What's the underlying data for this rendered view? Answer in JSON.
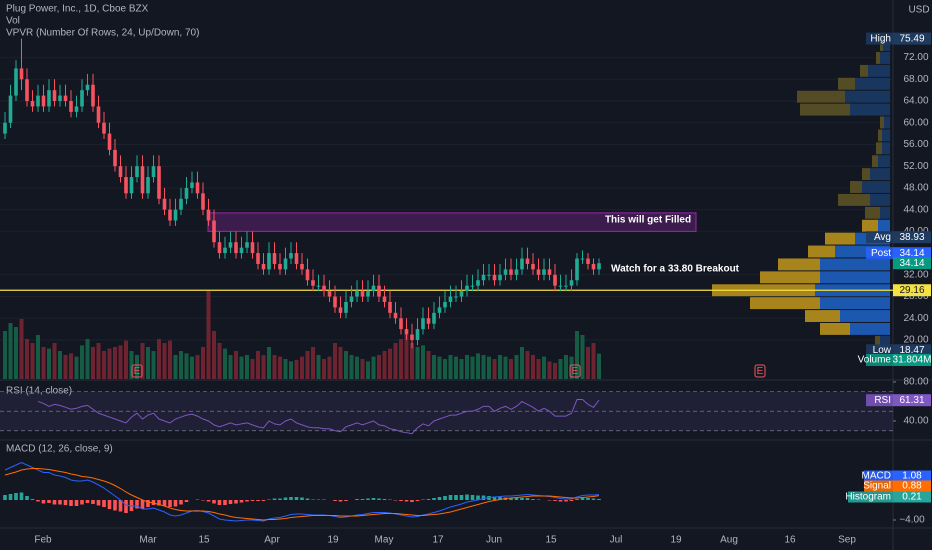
{
  "chart_data": {
    "type": "candlestick",
    "title": "Plug Power, Inc., 1D, Cboe BZX",
    "currency": "USD",
    "x_labels": [
      "Feb",
      "Mar",
      "15",
      "Apr",
      "19",
      "May",
      "17",
      "Jun",
      "15",
      "Jul",
      "19",
      "Aug",
      "16",
      "Sep"
    ],
    "open": [
      58,
      60,
      65,
      70,
      68,
      64,
      63,
      65,
      63,
      66,
      64,
      65,
      64,
      62,
      63,
      66,
      67,
      63,
      60,
      58,
      55,
      52,
      50,
      47,
      50,
      52,
      47,
      50,
      52,
      46,
      44,
      42,
      44,
      46,
      48,
      49,
      47,
      44,
      42,
      38,
      36,
      37,
      38,
      36,
      37,
      38,
      36,
      34,
      33,
      36,
      34,
      33,
      35,
      36,
      34,
      33,
      31,
      30,
      30,
      29,
      28,
      26,
      25,
      27,
      28,
      29,
      28,
      29,
      30,
      28,
      27,
      25,
      24,
      22,
      21,
      20,
      22,
      24,
      23,
      25,
      26,
      27,
      28,
      28,
      29,
      30,
      30,
      31,
      32,
      32,
      31,
      32,
      33,
      32,
      33,
      35,
      34,
      33,
      32,
      33,
      32,
      30,
      30,
      30,
      31,
      35,
      35,
      34,
      33
    ],
    "high": [
      62,
      67,
      71.5,
      75.49,
      70,
      66,
      67,
      67,
      68,
      68,
      67,
      67,
      66,
      65,
      68,
      69,
      69,
      65,
      62,
      60,
      57,
      54,
      52,
      52,
      54,
      54,
      52,
      54,
      54,
      48,
      46,
      46,
      48,
      50,
      51,
      51,
      49,
      46,
      44,
      40,
      39,
      40,
      40,
      39,
      40,
      40,
      38,
      36,
      38,
      38,
      36,
      37,
      38,
      38,
      36,
      35,
      33,
      32,
      32,
      31,
      30,
      28,
      29,
      30,
      31,
      31,
      31,
      32,
      32,
      30,
      29,
      27,
      26,
      24,
      23,
      24,
      26,
      26,
      27,
      28,
      29,
      30,
      30,
      31,
      32,
      32,
      33,
      34,
      34,
      34,
      34,
      35,
      35,
      35,
      37,
      37,
      36,
      35,
      35,
      35,
      34,
      32,
      32,
      33,
      36,
      36.5,
      36,
      35,
      35
    ],
    "low": [
      57,
      59,
      64,
      66,
      63,
      62,
      62,
      62,
      62,
      63,
      63,
      63,
      61,
      61,
      62,
      65,
      62,
      59,
      57,
      54,
      51,
      49,
      46,
      46,
      49,
      46,
      46,
      49,
      45,
      43,
      41,
      41,
      43,
      45,
      47,
      46,
      43,
      41,
      37,
      35,
      35,
      36,
      35,
      35,
      36,
      35,
      33,
      32,
      32,
      33,
      32,
      32,
      34,
      33,
      32,
      30,
      29,
      29,
      28,
      27,
      25,
      24,
      24,
      26,
      27,
      27,
      27,
      28,
      27,
      26,
      24,
      23,
      21,
      20,
      18.47,
      19,
      21,
      22,
      22,
      24,
      25,
      26,
      27,
      27,
      28,
      29,
      29,
      30,
      31,
      30,
      30,
      31,
      31,
      31,
      32,
      33,
      32,
      31,
      31,
      31,
      29,
      29,
      29,
      29,
      30,
      34,
      33,
      32,
      32
    ],
    "close": [
      60,
      65,
      70,
      68,
      64,
      63,
      65,
      63,
      66,
      64,
      65,
      64,
      62,
      63,
      66,
      67,
      63,
      60,
      58,
      55,
      52,
      50,
      47,
      50,
      52,
      47,
      50,
      52,
      46,
      44,
      42,
      44,
      46,
      48,
      49,
      47,
      44,
      42,
      38,
      36,
      37,
      38,
      36,
      37,
      38,
      36,
      34,
      33,
      36,
      34,
      33,
      35,
      36,
      34,
      33,
      31,
      30,
      30,
      29,
      28,
      26,
      25,
      27,
      28,
      29,
      28,
      29,
      30,
      28,
      27,
      25,
      24,
      22,
      21,
      20,
      22,
      24,
      23,
      25,
      26,
      27,
      28,
      28,
      29,
      30,
      30,
      31,
      32,
      32,
      31,
      32,
      33,
      32,
      33,
      35,
      34,
      33,
      32,
      33,
      32,
      30,
      30,
      30,
      31,
      35,
      35,
      34,
      33,
      34.14
    ],
    "colors": {
      "up": "#22ab94",
      "down": "#f7525f"
    },
    "ylim": [
      13,
      82.6
    ],
    "yticks": [
      {
        "value": 72,
        "label": "72.00"
      },
      {
        "value": 68,
        "label": "68.00"
      },
      {
        "value": 64,
        "label": "64.00"
      },
      {
        "value": 60,
        "label": "60.00"
      },
      {
        "value": 56,
        "label": "56.00"
      },
      {
        "value": 52,
        "label": "52.00"
      },
      {
        "value": 48,
        "label": "48.00"
      },
      {
        "value": 44,
        "label": "44.00"
      },
      {
        "value": 40,
        "label": "40.00"
      },
      {
        "value": 32,
        "label": "32.00"
      },
      {
        "value": 28,
        "label": "28.00"
      },
      {
        "value": 24,
        "label": "24.00"
      },
      {
        "value": 20,
        "label": "20.00"
      }
    ],
    "high_tag": "High",
    "low_tag": "Low",
    "post": {
      "name": "Post",
      "value": 34.14
    },
    "level": {
      "value": 29.16,
      "color": "#f5e142"
    },
    "volume": {
      "title": "Vol",
      "name": "Volume",
      "values": [
        60,
        70,
        65,
        75,
        50,
        45,
        55,
        40,
        38,
        45,
        35,
        30,
        32,
        28,
        42,
        50,
        40,
        45,
        35,
        38,
        40,
        42,
        48,
        35,
        30,
        45,
        40,
        35,
        50,
        45,
        48,
        30,
        35,
        32,
        28,
        30,
        40,
        110,
        60,
        45,
        38,
        30,
        35,
        28,
        30,
        25,
        35,
        30,
        40,
        30,
        28,
        25,
        22,
        24,
        28,
        35,
        40,
        30,
        25,
        28,
        45,
        40,
        35,
        30,
        28,
        25,
        22,
        28,
        30,
        35,
        38,
        45,
        50,
        55,
        45,
        40,
        42,
        35,
        30,
        28,
        25,
        30,
        28,
        25,
        30,
        28,
        32,
        30,
        28,
        25,
        30,
        28,
        25,
        30,
        40,
        35,
        30,
        25,
        28,
        22,
        20,
        25,
        30,
        28,
        60,
        55,
        40,
        45,
        31.804
      ],
      "value_labels": {
        "108": "31.804M"
      }
    },
    "profile": {
      "title": "VPVR (Number Of Rows, 24, Up/Down, 70)",
      "range": [
        18.47,
        75.49
      ],
      "up": [
        10,
        40,
        50,
        70,
        75,
        70,
        70,
        55,
        35,
        12,
        10,
        20,
        28,
        20,
        12,
        8,
        8,
        6,
        40,
        45,
        35,
        22,
        10,
        7
      ],
      "down": [
        5,
        30,
        35,
        70,
        103,
        60,
        42,
        27,
        30,
        16,
        15,
        32,
        12,
        8,
        6,
        6,
        4,
        4,
        50,
        48,
        17,
        8,
        4,
        3
      ],
      "value_area": [
        1,
        9
      ],
      "avg": {
        "name": "Avg",
        "value": 38.93
      }
    },
    "annotations": [
      {
        "text": "This will get Filled",
        "zone": [
          40,
          43.4
        ]
      },
      {
        "text": "Watch for a 33.80 Breakout"
      }
    ],
    "events": [
      "E",
      "E",
      "E"
    ],
    "rsi": {
      "title": "RSI (14, close)",
      "name": "RSI",
      "color": "#7e57c2",
      "ylim": [
        20.5,
        82
      ],
      "yticks": [
        {
          "value": 80,
          "label": "80.00"
        },
        {
          "value": 40,
          "label": "40.00"
        }
      ],
      "bands": [
        30,
        50,
        70
      ],
      "values": [
        null,
        null,
        null,
        null,
        null,
        null,
        60,
        58,
        55,
        57,
        56,
        54,
        52,
        53,
        55,
        56,
        52,
        48,
        46,
        44,
        42,
        40,
        38,
        44,
        48,
        42,
        46,
        48,
        42,
        40,
        38,
        42,
        44,
        46,
        47,
        45,
        42,
        40,
        36,
        34,
        36,
        38,
        36,
        37,
        38,
        36,
        34,
        33,
        40,
        37,
        36,
        40,
        42,
        38,
        36,
        34,
        33,
        33,
        32,
        32,
        30,
        29,
        34,
        36,
        38,
        36,
        38,
        40,
        36,
        35,
        32,
        31,
        29,
        28,
        27,
        33,
        37,
        35,
        40,
        42,
        44,
        46,
        46,
        48,
        50,
        50,
        52,
        55,
        55,
        50,
        53,
        55,
        52,
        55,
        60,
        57,
        54,
        50,
        53,
        50,
        45,
        45,
        45,
        48,
        62,
        62,
        57,
        54,
        61.31
      ]
    },
    "macd": {
      "title": "MACD (12, 26, close, 9)",
      "ylim": [
        -5.6,
        12
      ],
      "yticks": [
        {
          "value": -4,
          "label": "−4.00"
        }
      ],
      "series": [
        {
          "name": "MACD",
          "color": "#2962ff",
          "values": [
            6,
            6.5,
            7,
            7.5,
            7,
            6.5,
            6,
            5.5,
            5.5,
            5,
            4.8,
            4.5,
            4,
            3.8,
            3.8,
            4,
            3.6,
            3,
            2.4,
            1.6,
            0.8,
            0,
            -1,
            -1.2,
            -1.2,
            -1.8,
            -1.8,
            -1.6,
            -2,
            -2.4,
            -3,
            -3.2,
            -3,
            -2.6,
            -2.2,
            -2.1,
            -2.3,
            -2.6,
            -3.2,
            -3.8,
            -4,
            -4.1,
            -4.2,
            -4.1,
            -4,
            -4,
            -4.1,
            -4.2,
            -3.8,
            -3.6,
            -3.5,
            -3.2,
            -2.9,
            -2.8,
            -2.8,
            -2.9,
            -3,
            -3,
            -3,
            -3.1,
            -3.3,
            -3.5,
            -3.4,
            -3.2,
            -3,
            -2.9,
            -2.7,
            -2.5,
            -2.5,
            -2.5,
            -2.6,
            -2.8,
            -3,
            -3.2,
            -3.4,
            -3.3,
            -3,
            -2.8,
            -2.5,
            -2.2,
            -1.8,
            -1.4,
            -1.1,
            -0.8,
            -0.4,
            -0.2,
            0,
            0.3,
            0.5,
            0.6,
            0.7,
            0.8,
            0.8,
            0.9,
            1,
            1.1,
            1,
            0.9,
            0.8,
            0.7,
            0.5,
            0.3,
            0.2,
            0.2,
            0.6,
            0.9,
            1,
            1,
            1.08
          ]
        },
        {
          "name": "Signal",
          "color": "#ff6d00",
          "values": [
            5,
            5.3,
            5.6,
            6,
            6.2,
            6.3,
            6.3,
            6.2,
            6.1,
            5.9,
            5.7,
            5.5,
            5.2,
            5,
            4.7,
            4.6,
            4.4,
            4.1,
            3.8,
            3.4,
            2.9,
            2.3,
            1.6,
            1,
            0.5,
            0,
            -0.4,
            -0.6,
            -0.9,
            -1.2,
            -1.6,
            -1.9,
            -2.1,
            -2.2,
            -2.2,
            -2.2,
            -2.2,
            -2.3,
            -2.5,
            -2.8,
            -3,
            -3.3,
            -3.5,
            -3.6,
            -3.7,
            -3.8,
            -3.9,
            -4,
            -3.9,
            -3.9,
            -3.8,
            -3.7,
            -3.5,
            -3.4,
            -3.3,
            -3.2,
            -3.1,
            -3.1,
            -3.1,
            -3.1,
            -3.1,
            -3.2,
            -3.2,
            -3.2,
            -3.2,
            -3.1,
            -3,
            -2.9,
            -2.8,
            -2.7,
            -2.7,
            -2.7,
            -2.8,
            -2.9,
            -3,
            -3.1,
            -3.1,
            -3,
            -2.9,
            -2.8,
            -2.6,
            -2.4,
            -2.1,
            -1.8,
            -1.5,
            -1.2,
            -0.9,
            -0.6,
            -0.3,
            -0.1,
            0.1,
            0.3,
            0.4,
            0.5,
            0.6,
            0.7,
            0.8,
            0.8,
            0.8,
            0.8,
            0.7,
            0.6,
            0.5,
            0.4,
            0.4,
            0.5,
            0.6,
            0.7,
            0.88
          ]
        },
        {
          "name": "Histogram",
          "color": "#26a69a",
          "values": [
            1,
            1.2,
            1.4,
            1.5,
            0.8,
            0.2,
            -0.3,
            -0.7,
            -0.6,
            -0.9,
            -0.9,
            -1,
            -1.2,
            -1.2,
            -0.9,
            -0.6,
            -0.8,
            -1.1,
            -1.4,
            -1.8,
            -2.1,
            -2.3,
            -2.6,
            -2.2,
            -1.7,
            -1.8,
            -1.4,
            -1,
            -1.1,
            -1.2,
            -1.4,
            -1.3,
            -0.9,
            -0.4,
            0,
            0.1,
            -0.1,
            -0.3,
            -0.7,
            -1,
            -1,
            -0.8,
            -0.7,
            -0.5,
            -0.3,
            -0.2,
            -0.2,
            -0.2,
            0.1,
            0.3,
            0.3,
            0.5,
            0.6,
            0.6,
            0.5,
            0.3,
            0.1,
            0.1,
            0.1,
            0,
            -0.2,
            -0.3,
            -0.2,
            0,
            0.2,
            0.2,
            0.3,
            0.4,
            0.3,
            0.2,
            0.1,
            -0.1,
            -0.2,
            -0.3,
            -0.4,
            -0.2,
            0.1,
            0.2,
            0.4,
            0.6,
            0.8,
            1,
            1,
            1,
            1.1,
            1,
            0.9,
            0.9,
            0.8,
            0.7,
            0.6,
            0.5,
            0.4,
            0.4,
            0.4,
            0.4,
            0.2,
            0.1,
            0,
            -0.1,
            -0.2,
            -0.3,
            -0.3,
            -0.2,
            0.2,
            0.4,
            0.4,
            0.3,
            0.21
          ]
        }
      ]
    }
  }
}
